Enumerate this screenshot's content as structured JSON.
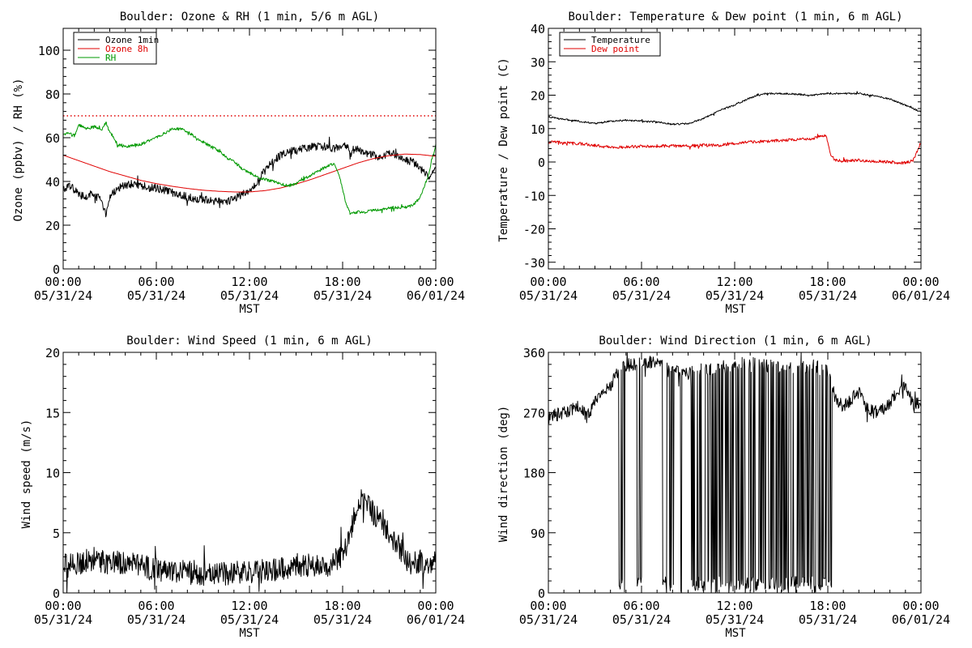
{
  "colors": {
    "background": "#ffffff",
    "axis": "#000000",
    "ozone_1min": "#000000",
    "ozone_8h": "#e00000",
    "rh": "#009900",
    "temperature": "#000000",
    "dew_point": "#e00000",
    "wind_speed": "#000000",
    "wind_direction": "#000000",
    "reference_line": "#e00000"
  },
  "time_axis": {
    "tick_times": [
      "00:00",
      "06:00",
      "12:00",
      "18:00",
      "00:00"
    ],
    "tick_dates": [
      "05/31/24",
      "05/31/24",
      "05/31/24",
      "05/31/24",
      "06/01/24"
    ],
    "xlabel": "MST"
  },
  "chart_data": [
    {
      "id": "ozone_rh",
      "type": "line",
      "title": "Boulder: Ozone & RH (1 min, 5/6 m AGL)",
      "ylabel": "Ozone (ppbv) / RH (%)",
      "xlabel": "MST",
      "xlim": [
        0,
        24
      ],
      "ylim": [
        0,
        110
      ],
      "yticks": [
        0,
        20,
        40,
        60,
        80,
        100
      ],
      "grid": false,
      "legend": "top-left",
      "reference_line": {
        "y": 70,
        "style": "dotted",
        "color": "#e00000"
      },
      "series": [
        {
          "name": "Ozone 1min",
          "color": "#000000",
          "x": [
            0,
            0.5,
            1,
            1.5,
            2,
            2.5,
            2.75,
            3,
            3.5,
            4,
            4.5,
            5,
            5.5,
            6,
            6.5,
            7,
            7.5,
            8,
            8.5,
            9,
            9.5,
            10,
            10.5,
            11,
            11.5,
            12,
            12.5,
            13,
            13.5,
            14,
            14.5,
            15,
            15.5,
            16,
            16.5,
            17,
            17.5,
            18,
            18.5,
            19,
            19.5,
            20,
            20.5,
            21,
            21.5,
            22,
            22.5,
            23,
            23.5,
            24
          ],
          "y": [
            36,
            38,
            34,
            33,
            35,
            31,
            24,
            33,
            37,
            38,
            39,
            38,
            37,
            37,
            36,
            35,
            34,
            33,
            32,
            32,
            31,
            31,
            31,
            32,
            34,
            36,
            40,
            45,
            49,
            52,
            54,
            54,
            55,
            56,
            56,
            56,
            55,
            57,
            54,
            55,
            53,
            52,
            51,
            53,
            52,
            50,
            49,
            46,
            42,
            45
          ],
          "noise": 1.8
        },
        {
          "name": "Ozone 8h",
          "color": "#e00000",
          "x": [
            0,
            1,
            2,
            3,
            4,
            5,
            6,
            7,
            8,
            9,
            10,
            11,
            12,
            13,
            14,
            15,
            16,
            17,
            18,
            19,
            20,
            21,
            22,
            23,
            24
          ],
          "y": [
            52,
            49.5,
            47,
            44.5,
            42.5,
            40.5,
            39,
            37.8,
            36.8,
            36,
            35.5,
            35.2,
            35.2,
            35.8,
            37,
            38.8,
            41,
            43.5,
            46,
            48.5,
            50.5,
            51.8,
            52.5,
            52.3,
            51.5
          ],
          "noise": 0
        },
        {
          "name": "RH",
          "color": "#009900",
          "x": [
            0,
            0.25,
            0.75,
            1,
            1.5,
            2,
            2.5,
            2.75,
            3,
            3.5,
            4,
            5,
            6,
            6.5,
            7,
            7.5,
            8,
            8.5,
            9,
            9.5,
            10,
            10.5,
            11,
            11.5,
            12,
            12.5,
            13,
            13.5,
            14,
            14.5,
            15,
            15.5,
            16,
            16.5,
            17,
            17.5,
            17.8,
            18.2,
            18.5,
            19,
            19.5,
            20,
            20.5,
            21,
            21.5,
            22,
            22.5,
            23,
            23.5,
            24
          ],
          "y": [
            61,
            62,
            61,
            66,
            64,
            65,
            64,
            67,
            63,
            57,
            56,
            57,
            60,
            62,
            64,
            64,
            63,
            60,
            58,
            56,
            54,
            51,
            49,
            46,
            44,
            42,
            41,
            40,
            39,
            38,
            39,
            41,
            43,
            45,
            47,
            48,
            42,
            30,
            25,
            26,
            26,
            27,
            27,
            28,
            28,
            28,
            29,
            33,
            42,
            57
          ],
          "noise": 0.7
        }
      ]
    },
    {
      "id": "temp_dew",
      "type": "line",
      "title": "Boulder: Temperature & Dew point (1 min, 6 m AGL)",
      "ylabel": "Temperature / Dew point (C)",
      "xlabel": "MST",
      "xlim": [
        0,
        24
      ],
      "ylim": [
        -32,
        40
      ],
      "yticks": [
        -30,
        -20,
        -10,
        0,
        10,
        20,
        30,
        40
      ],
      "grid": false,
      "legend": "top-left",
      "series": [
        {
          "name": "Temperature",
          "color": "#000000",
          "x": [
            0,
            1,
            2,
            3,
            4,
            5,
            6,
            7,
            8,
            9,
            10,
            11,
            12,
            13,
            14,
            15,
            16,
            17,
            18,
            19,
            20,
            21,
            22,
            23,
            24
          ],
          "y": [
            13.5,
            12.8,
            12.2,
            11.5,
            12.2,
            12.5,
            12.2,
            12,
            11.3,
            11.5,
            13,
            15.5,
            17,
            19.2,
            20.5,
            20.5,
            20.3,
            20,
            20.5,
            20.5,
            20.5,
            19.8,
            18.8,
            17,
            15
          ],
          "noise": 0.25
        },
        {
          "name": "Dew point",
          "color": "#e00000",
          "x": [
            0,
            1,
            2,
            3,
            4,
            5,
            6,
            7,
            8,
            9,
            10,
            11,
            12,
            13,
            14,
            15,
            16,
            17,
            17.9,
            18.2,
            18.5,
            19,
            20,
            21,
            22,
            23,
            23.5,
            24
          ],
          "y": [
            6,
            5.8,
            5.5,
            5,
            4.3,
            4.5,
            4.7,
            4.8,
            4.8,
            4.8,
            5,
            5,
            5.5,
            6,
            6.2,
            6.5,
            6.8,
            7,
            8,
            2,
            0.5,
            0.3,
            0.5,
            0.2,
            0,
            -0.3,
            0.5,
            6
          ],
          "noise": 0.45
        }
      ]
    },
    {
      "id": "wind_speed",
      "type": "line",
      "title": "Boulder: Wind Speed (1 min, 6 m AGL)",
      "ylabel": "Wind speed (m/s)",
      "xlabel": "MST",
      "xlim": [
        0,
        24
      ],
      "ylim": [
        0,
        20
      ],
      "yticks": [
        0,
        5,
        10,
        15,
        20
      ],
      "grid": false,
      "legend": "none",
      "series": [
        {
          "name": "",
          "color": "#000000",
          "x": [
            0,
            1,
            2,
            3,
            4,
            5,
            6,
            7,
            8,
            9,
            10,
            11,
            12,
            13,
            14,
            15,
            16,
            17,
            18,
            18.5,
            19,
            19.5,
            20,
            20.5,
            21,
            21.5,
            22,
            22.5,
            23,
            23.5,
            24
          ],
          "y": [
            2.2,
            2.5,
            2.8,
            2.4,
            2.6,
            2.2,
            1.9,
            1.8,
            1.7,
            1.6,
            1.6,
            1.6,
            1.8,
            1.8,
            2.0,
            2.3,
            2.3,
            2.3,
            3.2,
            5.0,
            7.5,
            8.0,
            6.5,
            6.0,
            5.0,
            4.2,
            3.0,
            2.0,
            2.6,
            2.6,
            2.6
          ],
          "noise": 1.0
        }
      ]
    },
    {
      "id": "wind_direction",
      "type": "line",
      "title": "Boulder: Wind Direction (1 min, 6 m AGL)",
      "ylabel": "Wind direction (deg)",
      "xlabel": "MST",
      "xlim": [
        0,
        24
      ],
      "ylim": [
        0,
        360
      ],
      "yticks": [
        0,
        90,
        180,
        270,
        360
      ],
      "grid": false,
      "legend": "none",
      "series": [
        {
          "name": "",
          "color": "#000000",
          "x": [
            0,
            1,
            2,
            2.5,
            3,
            3.5,
            4,
            4.5,
            5,
            6,
            7,
            8,
            9,
            10,
            11,
            12,
            13,
            14,
            15,
            16,
            17,
            18,
            18.5,
            19,
            19.5,
            20,
            20.5,
            21,
            21.5,
            22,
            22.5,
            23,
            23.5,
            24
          ],
          "y": [
            262,
            270,
            278,
            262,
            290,
            300,
            310,
            330,
            340,
            345,
            345,
            335,
            330,
            335,
            338,
            340,
            345,
            340,
            338,
            335,
            340,
            330,
            290,
            280,
            290,
            300,
            275,
            270,
            275,
            285,
            300,
            315,
            280,
            285
          ],
          "noise": 10,
          "wrap_to_zero_intervals": [
            [
              4.5,
              5.0
            ],
            [
              5.7,
              6.0
            ],
            [
              7.3,
              8.1
            ],
            [
              8.4,
              8.6
            ],
            [
              9.2,
              18.3
            ]
          ],
          "wrap_fraction": 0.55
        }
      ]
    }
  ]
}
